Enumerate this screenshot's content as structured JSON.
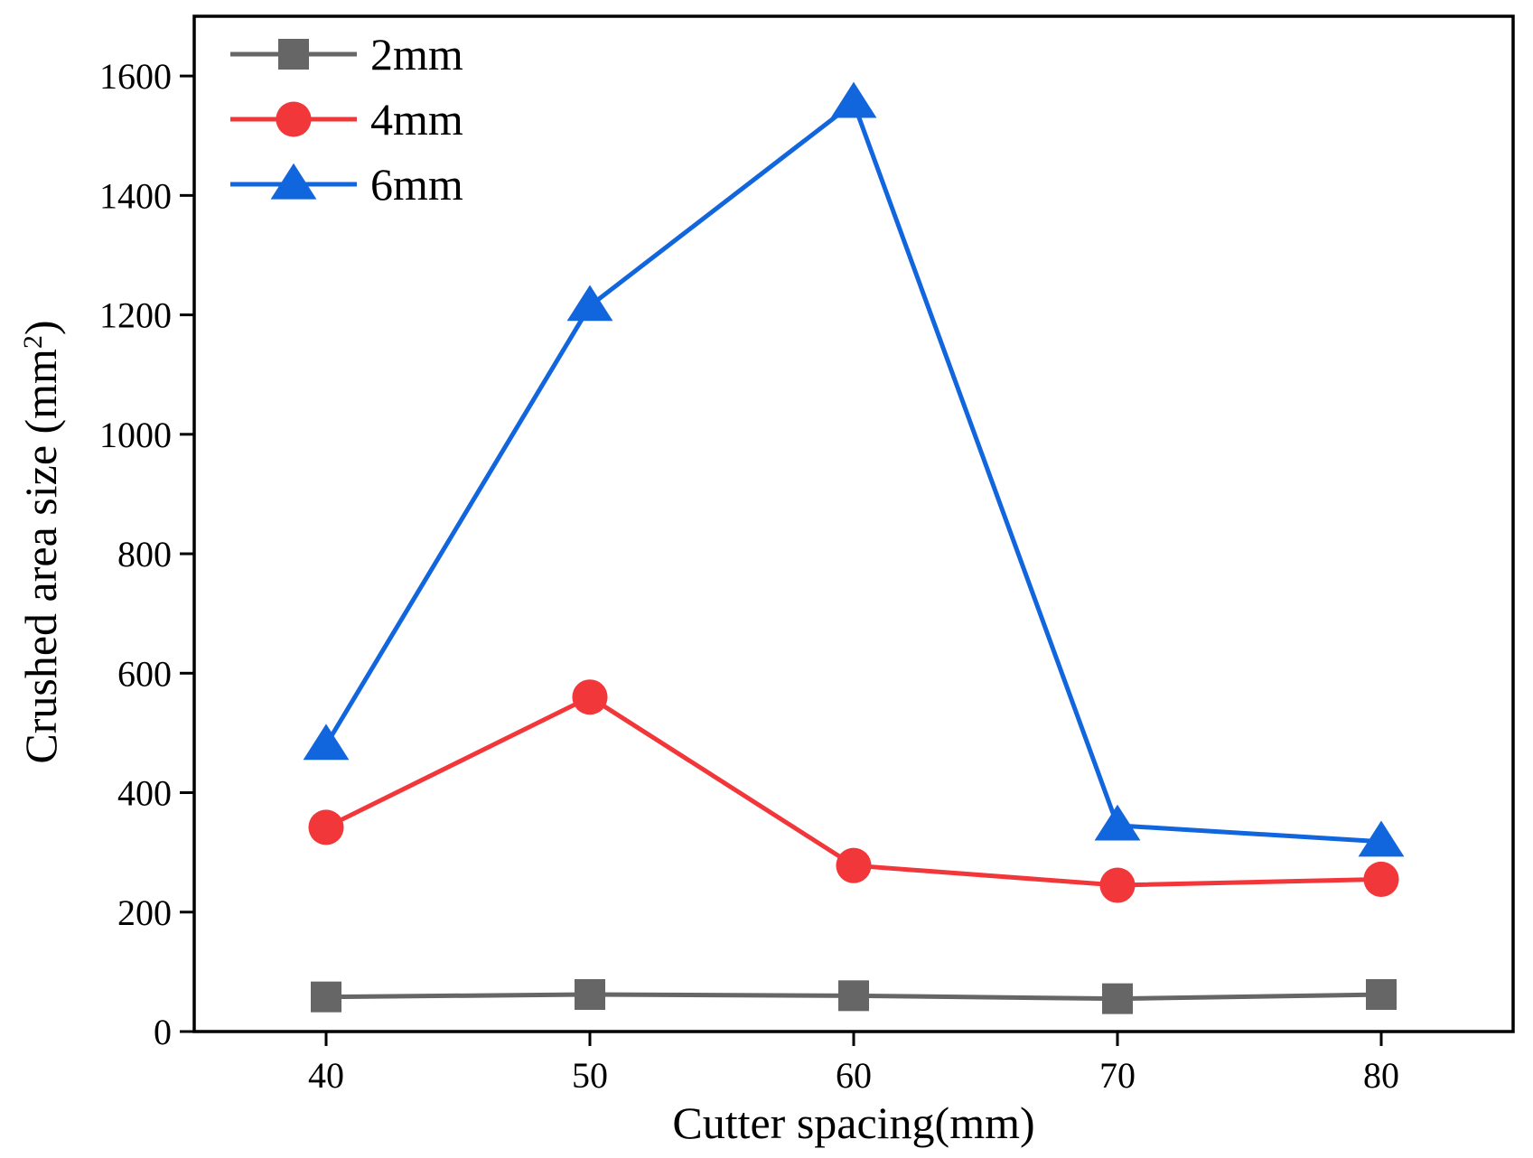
{
  "chart_data": {
    "type": "line",
    "title": "",
    "xlabel": "Cutter spacing(mm)",
    "ylabel": {
      "text": "Crushed area size (mm",
      "superscript": "2",
      "suffix": ")"
    },
    "x": [
      40,
      50,
      60,
      70,
      80
    ],
    "xlim": [
      35,
      85
    ],
    "ylim": [
      0,
      1700
    ],
    "xticks": [
      "40",
      "50",
      "60",
      "70",
      "80"
    ],
    "yticks": [
      "0",
      "200",
      "400",
      "600",
      "800",
      "1000",
      "1200",
      "1400",
      "1600"
    ],
    "ytick_values": [
      0,
      200,
      400,
      600,
      800,
      1000,
      1200,
      1400,
      1600
    ],
    "grid": false,
    "legend_position": "top-left",
    "series": [
      {
        "name": "2mm",
        "marker": "square",
        "color": "#666666",
        "values": [
          58,
          62,
          60,
          55,
          62
        ]
      },
      {
        "name": "4mm",
        "marker": "circle",
        "color": "#f2373b",
        "values": [
          342,
          560,
          278,
          245,
          255
        ]
      },
      {
        "name": "6mm",
        "marker": "triangle",
        "color": "#1166dd",
        "values": [
          480,
          1215,
          1555,
          345,
          318
        ]
      }
    ]
  }
}
